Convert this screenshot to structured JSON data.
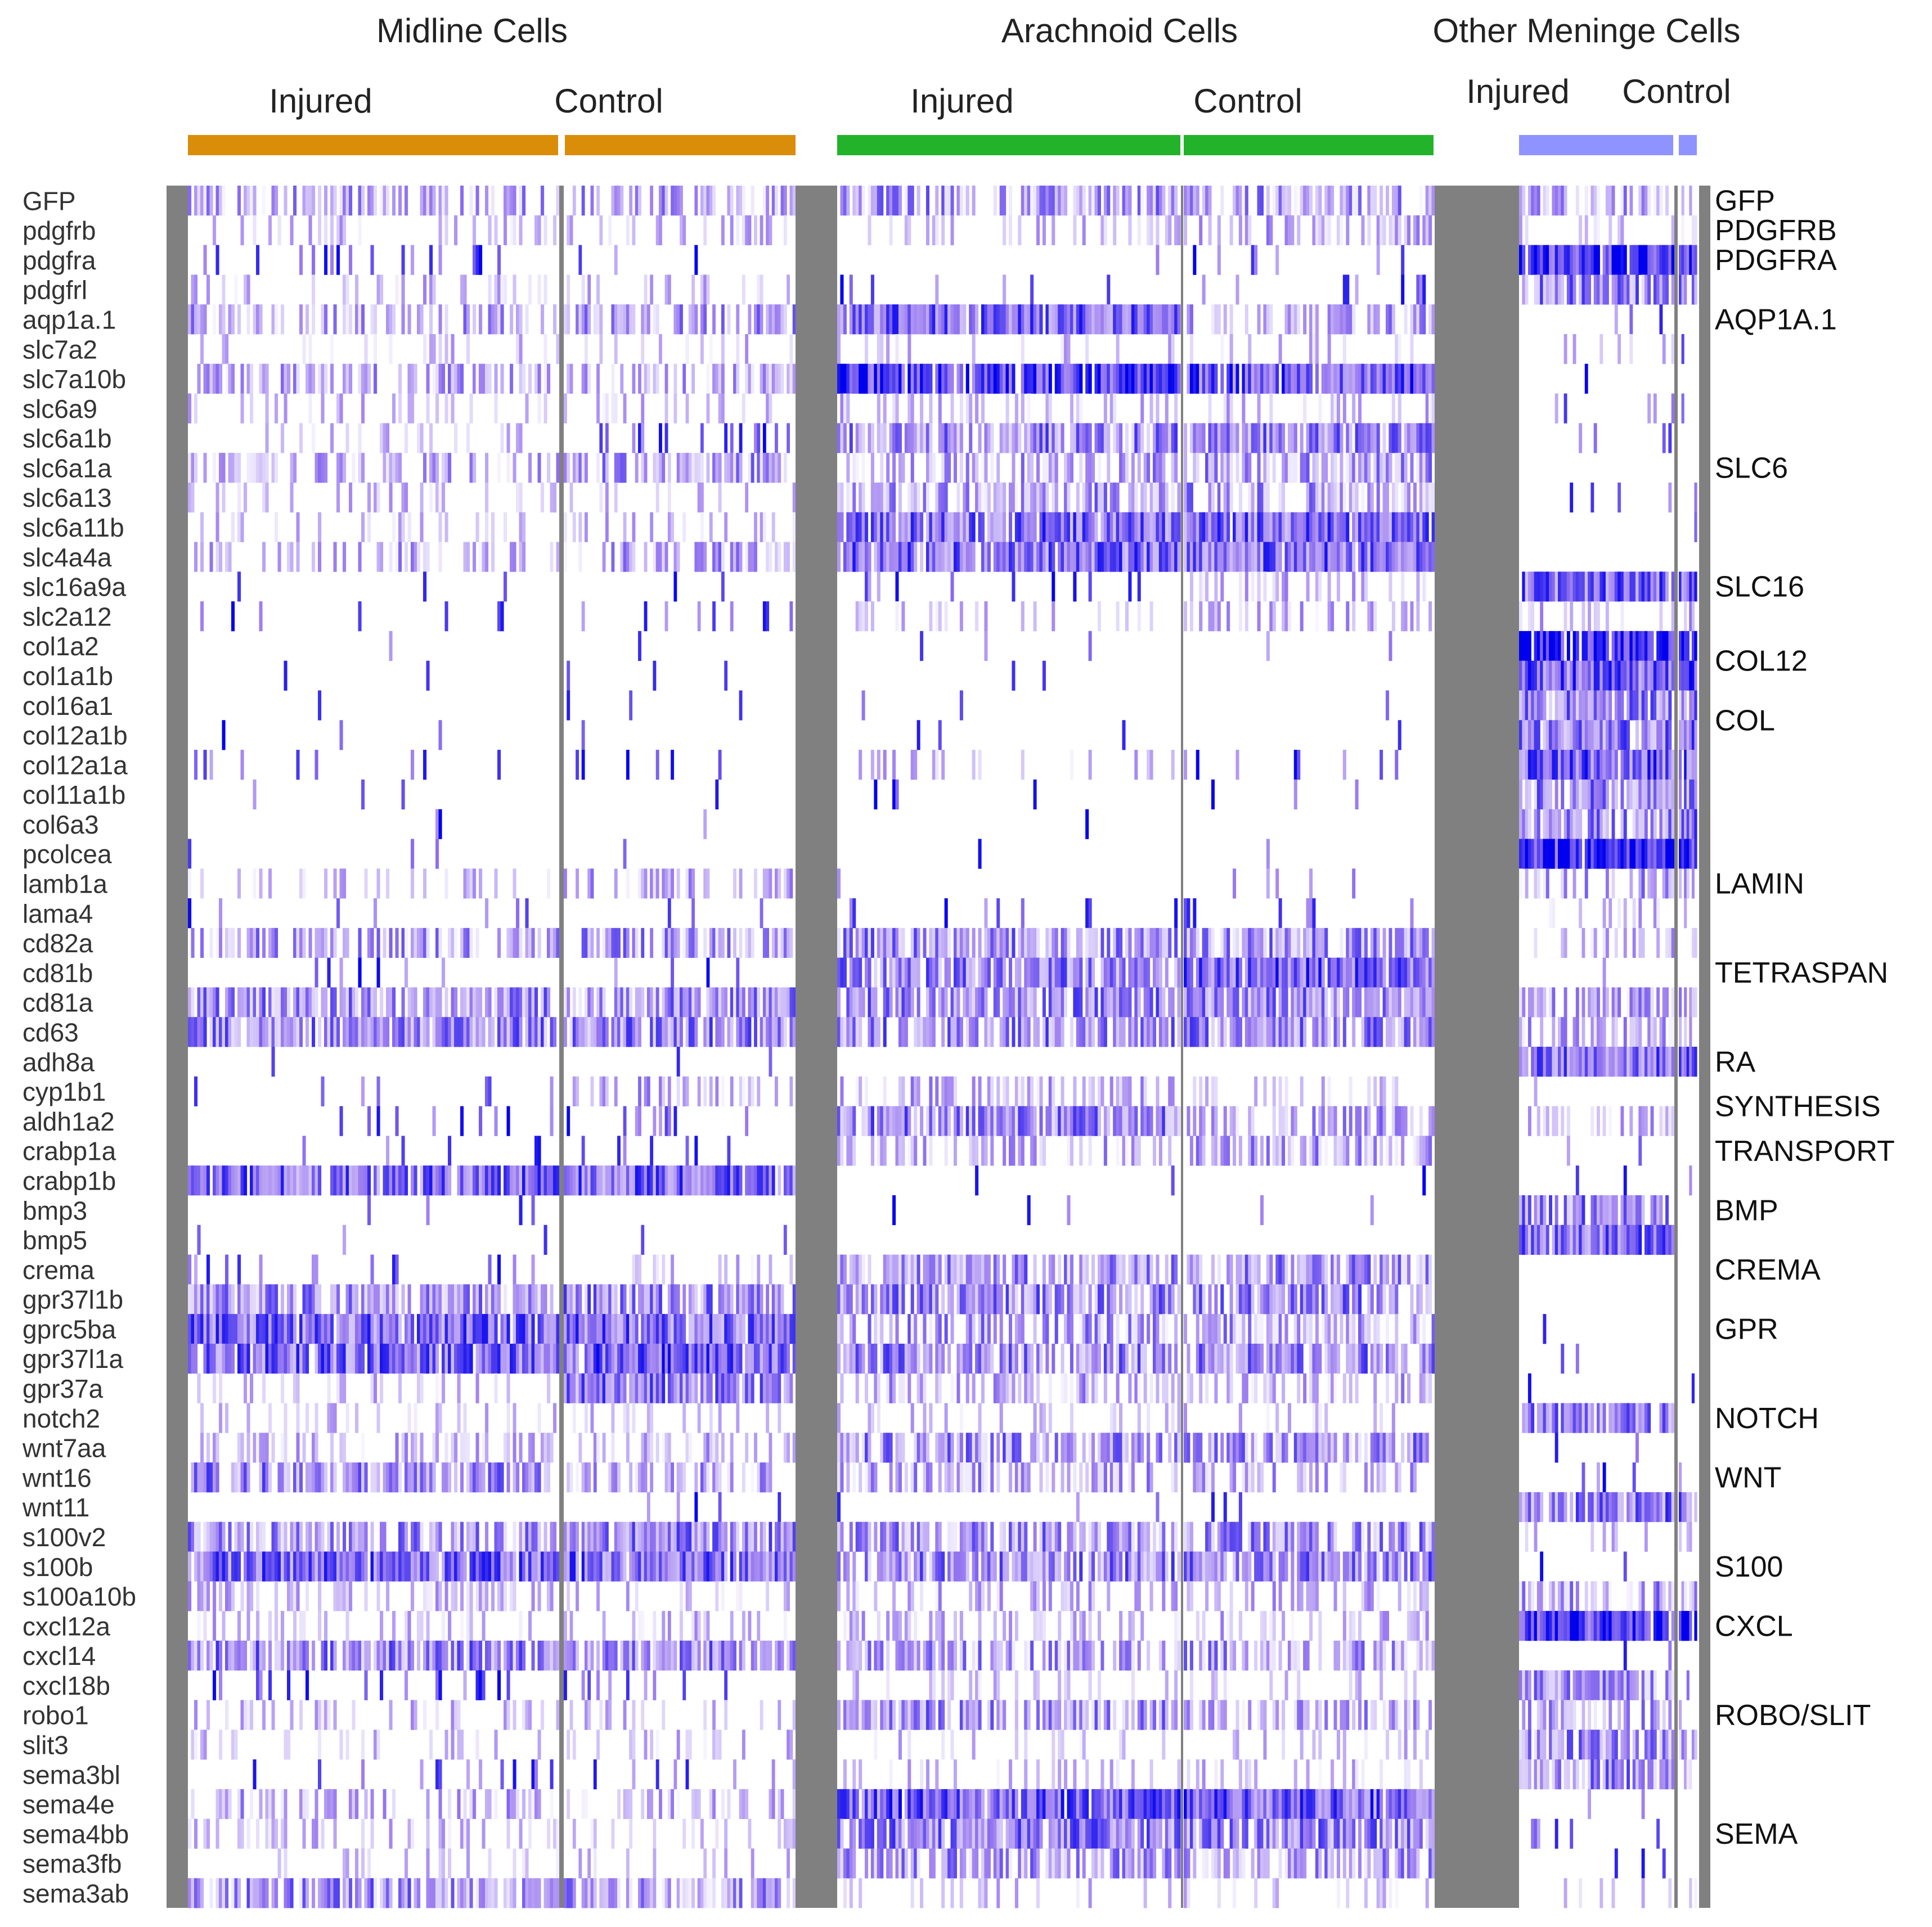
{
  "chart_data": {
    "type": "heatmap",
    "title": "",
    "colors": {
      "midline_bar": "#d98d08",
      "arachnoid_bar": "#22b32a",
      "other_bar": "#8f93ff",
      "separator": "#808080",
      "low": "#ffffff",
      "mid": "#9b7cf0",
      "high": "#0000ee"
    },
    "groups": [
      {
        "name": "Midline Cells",
        "conditions": [
          "Injured",
          "Control"
        ],
        "cells_injured": 120,
        "cells_control": 78
      },
      {
        "name": "Arachnoid Cells",
        "conditions": [
          "Injured",
          "Control"
        ],
        "cells_injured": 112,
        "cells_control": 82
      },
      {
        "name": "Other Meninge Cells",
        "conditions": [
          "Injured",
          "Control"
        ],
        "cells_injured": 52,
        "cells_control": 7
      }
    ],
    "genes": [
      "GFP",
      "pdgfrb",
      "pdgfra",
      "pdgfrl",
      "aqp1a.1",
      "slc7a2",
      "slc7a10b",
      "slc6a9",
      "slc6a1b",
      "slc6a1a",
      "slc6a13",
      "slc6a11b",
      "slc4a4a",
      "slc16a9a",
      "slc2a12",
      "col1a2",
      "col1a1b",
      "col16a1",
      "col12a1b",
      "col12a1a",
      "col11a1b",
      "col6a3",
      "pcolcea",
      "lamb1a",
      "lama4",
      "cd82a",
      "cd81b",
      "cd81a",
      "cd63",
      "adh8a",
      "cyp1b1",
      "aldh1a2",
      "crabp1a",
      "crabp1b",
      "bmp3",
      "bmp5",
      "crema",
      "gpr37l1b",
      "gprc5ba",
      "gpr37l1a",
      "gpr37a",
      "notch2",
      "wnt7aa",
      "wnt16",
      "wnt11",
      "s100v2",
      "s100b",
      "s100a10b",
      "cxcl12a",
      "cxcl14",
      "cxcl18b",
      "robo1",
      "slit3",
      "sema3bl",
      "sema4e",
      "sema4bb",
      "sema3fb",
      "sema3ab"
    ],
    "categories": [
      {
        "label": "GFP",
        "first": "GFP",
        "last": "GFP"
      },
      {
        "label": "PDGFRB",
        "first": "pdgfrb",
        "last": "pdgfrb"
      },
      {
        "label": "PDGFRA",
        "first": "pdgfra",
        "last": "pdgfra"
      },
      {
        "label": "AQP1A.1",
        "first": "aqp1a.1",
        "last": "aqp1a.1"
      },
      {
        "label": "SLC6",
        "first": "slc6a9",
        "last": "slc6a11b"
      },
      {
        "label": "SLC16",
        "first": "slc16a9a",
        "last": "slc16a9a"
      },
      {
        "label": "COL12",
        "first": "col1a2",
        "last": "col1a1b"
      },
      {
        "label": "COL",
        "first": "col16a1",
        "last": "col12a1b"
      },
      {
        "label": "LAMIN",
        "first": "lamb1a",
        "last": "lamb1a"
      },
      {
        "label": "TETRASPAN",
        "first": "cd81b",
        "last": "cd81b"
      },
      {
        "label": "RA",
        "first": "adh8a",
        "last": "adh8a"
      },
      {
        "label": "SYNTHESIS",
        "first": "cyp1b1",
        "last": "aldh1a2"
      },
      {
        "label": "TRANSPORT",
        "first": "crabp1a",
        "last": "crabp1a"
      },
      {
        "label": "BMP",
        "first": "bmp3",
        "last": "bmp3"
      },
      {
        "label": "CREMA",
        "first": "crema",
        "last": "crema"
      },
      {
        "label": "GPR",
        "first": "gprc5ba",
        "last": "gprc5ba"
      },
      {
        "label": "NOTCH",
        "first": "notch2",
        "last": "notch2"
      },
      {
        "label": "WNT",
        "first": "wnt16",
        "last": "wnt16"
      },
      {
        "label": "S100",
        "first": "s100b",
        "last": "s100b"
      },
      {
        "label": "CXCL",
        "first": "cxcl12a",
        "last": "cxcl12a"
      },
      {
        "label": "ROBO/SLIT",
        "first": "robo1",
        "last": "robo1"
      },
      {
        "label": "SEMA",
        "first": "sema4bb",
        "last": "sema4bb"
      }
    ],
    "expression_level_mean": [
      [
        0.3,
        0.15,
        0.08,
        0.15,
        0.3,
        0.12,
        0.28,
        0.12,
        0.1,
        0.25,
        0.12,
        0.14,
        0.25,
        0.02,
        0.04,
        0.01,
        0.01,
        0.01,
        0.01,
        0.04,
        0.01,
        0.01,
        0.01,
        0.12,
        0.03,
        0.35,
        0.03,
        0.4,
        0.45,
        0.01,
        0.05,
        0.06,
        0.04,
        0.55,
        0.01,
        0.01,
        0.08,
        0.4,
        0.55,
        0.55,
        0.15,
        0.12,
        0.2,
        0.45,
        0.02,
        0.4,
        0.55,
        0.2,
        0.15,
        0.45,
        0.08,
        0.15,
        0.1,
        0.08,
        0.25,
        0.15,
        0.1,
        0.4
      ],
      [
        0.3,
        0.15,
        0.02,
        0.15,
        0.35,
        0.12,
        0.25,
        0.12,
        0.08,
        0.35,
        0.12,
        0.14,
        0.3,
        0.02,
        0.05,
        0.01,
        0.01,
        0.01,
        0.01,
        0.08,
        0.01,
        0.01,
        0.01,
        0.25,
        0.03,
        0.35,
        0.02,
        0.4,
        0.45,
        0.01,
        0.25,
        0.06,
        0.04,
        0.55,
        0.01,
        0.01,
        0.12,
        0.45,
        0.55,
        0.6,
        0.5,
        0.12,
        0.22,
        0.3,
        0.04,
        0.45,
        0.55,
        0.15,
        0.15,
        0.45,
        0.06,
        0.12,
        0.15,
        0.06,
        0.25,
        0.12,
        0.1,
        0.35
      ],
      [
        0.35,
        0.15,
        0.02,
        0.05,
        0.55,
        0.12,
        0.75,
        0.15,
        0.45,
        0.3,
        0.35,
        0.55,
        0.55,
        0.08,
        0.12,
        0.01,
        0.01,
        0.01,
        0.01,
        0.15,
        0.01,
        0.01,
        0.01,
        0.03,
        0.03,
        0.4,
        0.45,
        0.45,
        0.45,
        0.01,
        0.25,
        0.45,
        0.25,
        0.01,
        0.01,
        0.01,
        0.4,
        0.45,
        0.35,
        0.45,
        0.3,
        0.1,
        0.4,
        0.3,
        0.02,
        0.4,
        0.45,
        0.2,
        0.2,
        0.35,
        0.12,
        0.4,
        0.12,
        0.15,
        0.6,
        0.5,
        0.35,
        0.1
      ],
      [
        0.35,
        0.25,
        0.03,
        0.05,
        0.3,
        0.12,
        0.65,
        0.15,
        0.45,
        0.35,
        0.35,
        0.55,
        0.55,
        0.2,
        0.2,
        0.01,
        0.01,
        0.01,
        0.01,
        0.06,
        0.01,
        0.01,
        0.01,
        0.03,
        0.06,
        0.4,
        0.6,
        0.45,
        0.45,
        0.01,
        0.15,
        0.3,
        0.35,
        0.01,
        0.01,
        0.01,
        0.4,
        0.45,
        0.35,
        0.45,
        0.25,
        0.1,
        0.4,
        0.25,
        0.02,
        0.4,
        0.45,
        0.2,
        0.2,
        0.35,
        0.12,
        0.3,
        0.1,
        0.15,
        0.6,
        0.45,
        0.35,
        0.1
      ],
      [
        0.3,
        0.15,
        0.75,
        0.45,
        0.05,
        0.12,
        0.01,
        0.05,
        0.02,
        0.01,
        0.05,
        0.01,
        0.01,
        0.55,
        0.2,
        0.85,
        0.6,
        0.45,
        0.5,
        0.6,
        0.45,
        0.45,
        0.8,
        0.3,
        0.15,
        0.2,
        0.01,
        0.35,
        0.25,
        0.55,
        0.01,
        0.3,
        0.01,
        0.01,
        0.45,
        0.55,
        0.01,
        0.01,
        0.01,
        0.01,
        0.01,
        0.45,
        0.01,
        0.03,
        0.5,
        0.1,
        0.01,
        0.35,
        0.75,
        0.01,
        0.4,
        0.3,
        0.4,
        0.4,
        0.01,
        0.05,
        0.05,
        0.1
      ],
      [
        0.2,
        0.15,
        0.75,
        0.4,
        0.02,
        0.08,
        0.01,
        0.02,
        0.01,
        0.01,
        0.02,
        0.01,
        0.01,
        0.55,
        0.25,
        0.85,
        0.75,
        0.45,
        0.55,
        0.55,
        0.45,
        0.55,
        0.8,
        0.2,
        0.15,
        0.1,
        0.01,
        0.25,
        0.2,
        0.55,
        0.01,
        0.05,
        0.01,
        0.01,
        0.01,
        0.01,
        0.01,
        0.01,
        0.01,
        0.01,
        0.01,
        0.1,
        0.01,
        0.01,
        0.55,
        0.1,
        0.01,
        0.3,
        0.75,
        0.01,
        0.25,
        0.2,
        0.35,
        0.2,
        0.01,
        0.05,
        0.05,
        0.15
      ]
    ]
  }
}
